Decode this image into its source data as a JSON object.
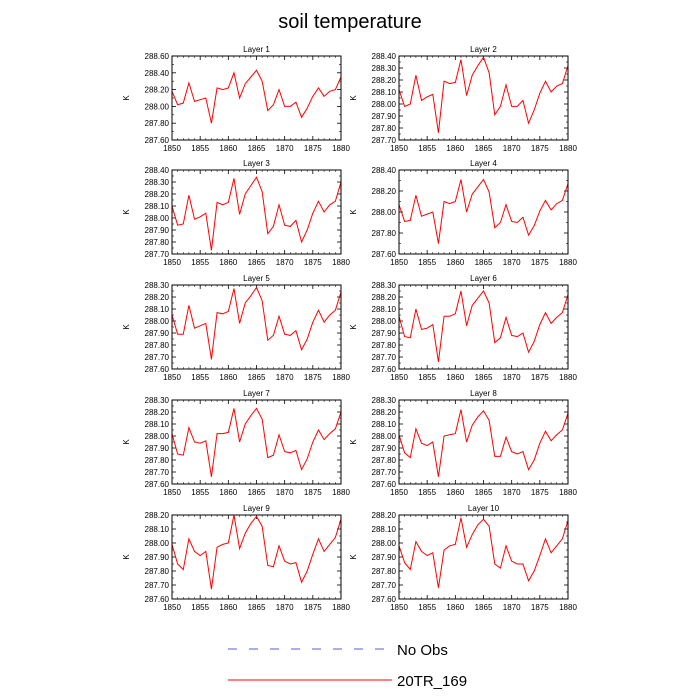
{
  "title": "soil temperature",
  "legend": {
    "items": [
      {
        "label": "No Obs",
        "style": "dashed",
        "color": "#5b5bd6"
      },
      {
        "label": "20TR_169",
        "style": "solid",
        "color": "#ff0000"
      }
    ]
  },
  "chart_data": [
    {
      "type": "line",
      "title": "Layer 1",
      "ylabel": "K",
      "ylim": [
        287.6,
        288.6
      ],
      "yticks": [
        "287.60",
        "287.80",
        "288.00",
        "288.20",
        "288.40",
        "288.60"
      ],
      "xticks": [
        "1850",
        "1855",
        "1860",
        "1865",
        "1870",
        "1875",
        "1880"
      ],
      "xlim": [
        1850,
        1880
      ],
      "series": [
        {
          "color": "#ff0000",
          "x": [
            1850,
            1851,
            1852,
            1853,
            1854,
            1855,
            1856,
            1857,
            1858,
            1859,
            1860,
            1861,
            1862,
            1863,
            1864,
            1865,
            1866,
            1867,
            1868,
            1869,
            1870,
            1871,
            1872,
            1873,
            1874,
            1875,
            1876,
            1877,
            1878,
            1879,
            1880
          ],
          "values": [
            288.18,
            288.02,
            288.04,
            288.28,
            288.06,
            288.08,
            288.1,
            287.8,
            288.22,
            288.2,
            288.22,
            288.4,
            288.1,
            288.27,
            288.35,
            288.43,
            288.3,
            287.95,
            288.02,
            288.2,
            288.0,
            288.0,
            288.05,
            287.87,
            287.98,
            288.12,
            288.22,
            288.12,
            288.18,
            288.2,
            288.35
          ]
        }
      ]
    },
    {
      "type": "line",
      "title": "Layer 2",
      "ylabel": "K",
      "ylim": [
        287.7,
        288.4
      ],
      "yticks": [
        "287.70",
        "287.80",
        "287.90",
        "288.00",
        "288.10",
        "288.20",
        "288.30",
        "288.40"
      ],
      "xticks": [
        "1850",
        "1855",
        "1860",
        "1865",
        "1870",
        "1875",
        "1880"
      ],
      "xlim": [
        1850,
        1880
      ],
      "series": [
        {
          "color": "#ff0000",
          "x": [
            1850,
            1851,
            1852,
            1853,
            1854,
            1855,
            1856,
            1857,
            1858,
            1859,
            1860,
            1861,
            1862,
            1863,
            1864,
            1865,
            1866,
            1867,
            1868,
            1869,
            1870,
            1871,
            1872,
            1873,
            1874,
            1875,
            1876,
            1877,
            1878,
            1879,
            1880
          ],
          "values": [
            288.12,
            287.98,
            288.0,
            288.24,
            288.03,
            288.06,
            288.08,
            287.76,
            288.19,
            288.17,
            288.18,
            288.37,
            288.07,
            288.24,
            288.32,
            288.39,
            288.26,
            287.91,
            287.98,
            288.16,
            287.98,
            287.98,
            288.03,
            287.84,
            287.95,
            288.09,
            288.19,
            288.1,
            288.15,
            288.17,
            288.32
          ]
        }
      ]
    },
    {
      "type": "line",
      "title": "Layer 3",
      "ylabel": "K",
      "ylim": [
        287.7,
        288.4
      ],
      "yticks": [
        "287.70",
        "287.80",
        "287.90",
        "288.00",
        "288.10",
        "288.20",
        "288.30",
        "288.40"
      ],
      "xticks": [
        "1850",
        "1855",
        "1860",
        "1865",
        "1870",
        "1875",
        "1880"
      ],
      "xlim": [
        1850,
        1880
      ],
      "series": [
        {
          "color": "#ff0000",
          "x": [
            1850,
            1851,
            1852,
            1853,
            1854,
            1855,
            1856,
            1857,
            1858,
            1859,
            1860,
            1861,
            1862,
            1863,
            1864,
            1865,
            1866,
            1867,
            1868,
            1869,
            1870,
            1871,
            1872,
            1873,
            1874,
            1875,
            1876,
            1877,
            1878,
            1879,
            1880
          ],
          "values": [
            288.1,
            287.94,
            287.95,
            288.19,
            287.99,
            288.01,
            288.04,
            287.73,
            288.13,
            288.11,
            288.13,
            288.33,
            288.03,
            288.2,
            288.27,
            288.34,
            288.22,
            287.87,
            287.93,
            288.11,
            287.94,
            287.93,
            287.98,
            287.8,
            287.9,
            288.04,
            288.14,
            288.05,
            288.11,
            288.14,
            288.3
          ]
        }
      ]
    },
    {
      "type": "line",
      "title": "Layer 4",
      "ylabel": "K",
      "ylim": [
        287.6,
        288.4
      ],
      "yticks": [
        "287.60",
        "287.80",
        "288.00",
        "288.20",
        "288.40"
      ],
      "xticks": [
        "1850",
        "1855",
        "1860",
        "1865",
        "1870",
        "1875",
        "1880"
      ],
      "xlim": [
        1850,
        1880
      ],
      "series": [
        {
          "color": "#ff0000",
          "x": [
            1850,
            1851,
            1852,
            1853,
            1854,
            1855,
            1856,
            1857,
            1858,
            1859,
            1860,
            1861,
            1862,
            1863,
            1864,
            1865,
            1866,
            1867,
            1868,
            1869,
            1870,
            1871,
            1872,
            1873,
            1874,
            1875,
            1876,
            1877,
            1878,
            1879,
            1880
          ],
          "values": [
            288.07,
            287.91,
            287.92,
            288.16,
            287.96,
            287.98,
            288.0,
            287.7,
            288.1,
            288.08,
            288.1,
            288.31,
            288.0,
            288.17,
            288.24,
            288.31,
            288.19,
            287.85,
            287.9,
            288.07,
            287.91,
            287.9,
            287.95,
            287.78,
            287.87,
            288.01,
            288.11,
            288.02,
            288.08,
            288.11,
            288.27
          ]
        }
      ]
    },
    {
      "type": "line",
      "title": "Layer 5",
      "ylabel": "K",
      "ylim": [
        287.6,
        288.3
      ],
      "yticks": [
        "287.60",
        "287.70",
        "287.80",
        "287.90",
        "288.00",
        "288.10",
        "288.20",
        "288.30"
      ],
      "xticks": [
        "1850",
        "1855",
        "1860",
        "1865",
        "1870",
        "1875",
        "1880"
      ],
      "xlim": [
        1850,
        1880
      ],
      "series": [
        {
          "color": "#ff0000",
          "x": [
            1850,
            1851,
            1852,
            1853,
            1854,
            1855,
            1856,
            1857,
            1858,
            1859,
            1860,
            1861,
            1862,
            1863,
            1864,
            1865,
            1866,
            1867,
            1868,
            1869,
            1870,
            1871,
            1872,
            1873,
            1874,
            1875,
            1876,
            1877,
            1878,
            1879,
            1880
          ],
          "values": [
            288.05,
            287.89,
            287.89,
            288.13,
            287.94,
            287.96,
            287.98,
            287.68,
            288.07,
            288.06,
            288.08,
            288.27,
            287.98,
            288.15,
            288.21,
            288.28,
            288.17,
            287.84,
            287.88,
            288.04,
            287.89,
            287.88,
            287.92,
            287.76,
            287.85,
            287.99,
            288.09,
            287.99,
            288.05,
            288.09,
            288.24
          ]
        }
      ]
    },
    {
      "type": "line",
      "title": "Layer 6",
      "ylabel": "K",
      "ylim": [
        287.6,
        288.3
      ],
      "yticks": [
        "287.60",
        "287.70",
        "287.80",
        "287.90",
        "288.00",
        "288.10",
        "288.20",
        "288.30"
      ],
      "xticks": [
        "1850",
        "1855",
        "1860",
        "1865",
        "1870",
        "1875",
        "1880"
      ],
      "xlim": [
        1850,
        1880
      ],
      "series": [
        {
          "color": "#ff0000",
          "x": [
            1850,
            1851,
            1852,
            1853,
            1854,
            1855,
            1856,
            1857,
            1858,
            1859,
            1860,
            1861,
            1862,
            1863,
            1864,
            1865,
            1866,
            1867,
            1868,
            1869,
            1870,
            1871,
            1872,
            1873,
            1874,
            1875,
            1876,
            1877,
            1878,
            1879,
            1880
          ],
          "values": [
            288.04,
            287.87,
            287.86,
            288.1,
            287.93,
            287.94,
            287.97,
            287.66,
            288.04,
            288.04,
            288.06,
            288.25,
            287.96,
            288.13,
            288.19,
            288.25,
            288.15,
            287.82,
            287.86,
            288.03,
            287.88,
            287.87,
            287.9,
            287.74,
            287.83,
            287.97,
            288.07,
            287.98,
            288.03,
            288.07,
            288.22
          ]
        }
      ]
    },
    {
      "type": "line",
      "title": "Layer 7",
      "ylabel": "K",
      "ylim": [
        287.6,
        288.3
      ],
      "yticks": [
        "287.60",
        "287.70",
        "287.80",
        "287.90",
        "288.00",
        "288.10",
        "288.20",
        "288.30"
      ],
      "xticks": [
        "1850",
        "1855",
        "1860",
        "1865",
        "1870",
        "1875",
        "1880"
      ],
      "xlim": [
        1850,
        1880
      ],
      "series": [
        {
          "color": "#ff0000",
          "x": [
            1850,
            1851,
            1852,
            1853,
            1854,
            1855,
            1856,
            1857,
            1858,
            1859,
            1860,
            1861,
            1862,
            1863,
            1864,
            1865,
            1866,
            1867,
            1868,
            1869,
            1870,
            1871,
            1872,
            1873,
            1874,
            1875,
            1876,
            1877,
            1878,
            1879,
            1880
          ],
          "values": [
            288.02,
            287.85,
            287.84,
            288.07,
            287.95,
            287.94,
            287.96,
            287.66,
            288.02,
            288.02,
            288.03,
            288.23,
            287.95,
            288.1,
            288.17,
            288.23,
            288.14,
            287.82,
            287.84,
            288.01,
            287.87,
            287.86,
            287.88,
            287.72,
            287.81,
            287.95,
            288.05,
            287.97,
            288.02,
            288.06,
            288.2
          ]
        }
      ]
    },
    {
      "type": "line",
      "title": "Layer 8",
      "ylabel": "K",
      "ylim": [
        287.6,
        288.3
      ],
      "yticks": [
        "287.60",
        "287.70",
        "287.80",
        "287.90",
        "288.00",
        "288.10",
        "288.20",
        "288.30"
      ],
      "xticks": [
        "1850",
        "1855",
        "1860",
        "1865",
        "1870",
        "1875",
        "1880"
      ],
      "xlim": [
        1850,
        1880
      ],
      "series": [
        {
          "color": "#ff0000",
          "x": [
            1850,
            1851,
            1852,
            1853,
            1854,
            1855,
            1856,
            1857,
            1858,
            1859,
            1860,
            1861,
            1862,
            1863,
            1864,
            1865,
            1866,
            1867,
            1868,
            1869,
            1870,
            1871,
            1872,
            1873,
            1874,
            1875,
            1876,
            1877,
            1878,
            1879,
            1880
          ],
          "values": [
            288.01,
            287.86,
            287.82,
            288.06,
            287.94,
            287.92,
            287.95,
            287.66,
            288.0,
            288.01,
            288.02,
            288.22,
            287.95,
            288.09,
            288.16,
            288.21,
            288.13,
            287.83,
            287.83,
            287.99,
            287.87,
            287.85,
            287.87,
            287.72,
            287.8,
            287.94,
            288.04,
            287.96,
            288.01,
            288.05,
            288.19
          ]
        }
      ]
    },
    {
      "type": "line",
      "title": "Layer 9",
      "ylabel": "K",
      "ylim": [
        287.6,
        288.2
      ],
      "yticks": [
        "287.60",
        "287.70",
        "287.80",
        "287.90",
        "288.00",
        "288.10",
        "288.20"
      ],
      "xticks": [
        "1850",
        "1855",
        "1860",
        "1865",
        "1870",
        "1875",
        "1880"
      ],
      "xlim": [
        1850,
        1880
      ],
      "series": [
        {
          "color": "#ff0000",
          "x": [
            1850,
            1851,
            1852,
            1853,
            1854,
            1855,
            1856,
            1857,
            1858,
            1859,
            1860,
            1861,
            1862,
            1863,
            1864,
            1865,
            1866,
            1867,
            1868,
            1869,
            1870,
            1871,
            1872,
            1873,
            1874,
            1875,
            1876,
            1877,
            1878,
            1879,
            1880
          ],
          "values": [
            287.99,
            287.85,
            287.81,
            288.03,
            287.94,
            287.91,
            287.94,
            287.67,
            287.97,
            287.99,
            288.0,
            288.2,
            287.96,
            288.07,
            288.14,
            288.19,
            288.12,
            287.84,
            287.83,
            287.98,
            287.87,
            287.85,
            287.86,
            287.72,
            287.8,
            287.92,
            288.03,
            287.94,
            287.99,
            288.04,
            288.17
          ]
        }
      ]
    },
    {
      "type": "line",
      "title": "Layer 10",
      "ylabel": "K",
      "ylim": [
        287.6,
        288.2
      ],
      "yticks": [
        "287.60",
        "287.70",
        "287.80",
        "287.90",
        "288.00",
        "288.10",
        "288.20"
      ],
      "xticks": [
        "1850",
        "1855",
        "1860",
        "1865",
        "1870",
        "1875",
        "1880"
      ],
      "xlim": [
        1850,
        1880
      ],
      "series": [
        {
          "color": "#ff0000",
          "x": [
            1850,
            1851,
            1852,
            1853,
            1854,
            1855,
            1856,
            1857,
            1858,
            1859,
            1860,
            1861,
            1862,
            1863,
            1864,
            1865,
            1866,
            1867,
            1868,
            1869,
            1870,
            1871,
            1872,
            1873,
            1874,
            1875,
            1876,
            1877,
            1878,
            1879,
            1880
          ],
          "values": [
            287.98,
            287.86,
            287.81,
            288.01,
            287.94,
            287.91,
            287.93,
            287.68,
            287.95,
            287.98,
            287.99,
            288.18,
            287.97,
            288.06,
            288.13,
            288.17,
            288.12,
            287.85,
            287.82,
            287.98,
            287.87,
            287.85,
            287.85,
            287.73,
            287.8,
            287.91,
            288.03,
            287.93,
            287.98,
            288.03,
            288.16
          ]
        }
      ]
    }
  ]
}
